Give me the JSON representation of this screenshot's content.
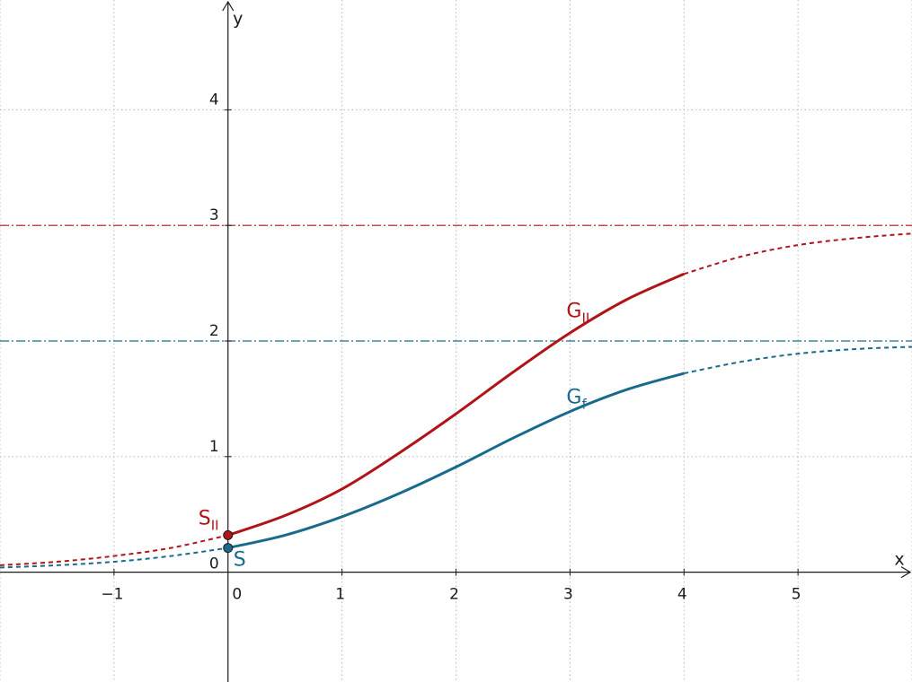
{
  "chart_data": {
    "type": "line",
    "xlabel": "x",
    "ylabel": "y",
    "xlim": [
      -2,
      6
    ],
    "ylim": [
      -0.95,
      4.95
    ],
    "grid": true,
    "origin_label": "0",
    "x_ticks": [
      {
        "value": -1,
        "label": "−1"
      },
      {
        "value": 0,
        "label": "0"
      },
      {
        "value": 1,
        "label": "1"
      },
      {
        "value": 2,
        "label": "2"
      },
      {
        "value": 3,
        "label": "3"
      },
      {
        "value": 4,
        "label": "4"
      },
      {
        "value": 5,
        "label": "5"
      }
    ],
    "y_ticks": [
      {
        "value": 1,
        "label": "1"
      },
      {
        "value": 2,
        "label": "2"
      },
      {
        "value": 3,
        "label": "3"
      },
      {
        "value": 4,
        "label": "4"
      }
    ],
    "asymptotes": [
      {
        "y": 3,
        "color": "#b01418"
      },
      {
        "y": 2,
        "color": "#1a6a8e"
      }
    ],
    "series": [
      {
        "name": "G",
        "subscript": "II",
        "color": "#b01418",
        "solid_range": [
          0,
          4
        ],
        "x": [
          -2,
          -1.5,
          -1,
          -0.5,
          0,
          0.5,
          1,
          1.5,
          2,
          2.5,
          3,
          3.5,
          4,
          4.5,
          5,
          5.5,
          6
        ],
        "y": [
          0.06,
          0.09,
          0.14,
          0.21,
          0.32,
          0.49,
          0.72,
          1.03,
          1.37,
          1.73,
          2.07,
          2.36,
          2.58,
          2.73,
          2.83,
          2.89,
          2.93
        ]
      },
      {
        "name": "G",
        "subscript": "f",
        "color": "#1a6a8e",
        "solid_range": [
          0,
          4
        ],
        "x": [
          -2,
          -1.5,
          -1,
          -0.5,
          0,
          0.5,
          1,
          1.5,
          2,
          2.5,
          3,
          3.5,
          4,
          4.5,
          5,
          5.5,
          6
        ],
        "y": [
          0.04,
          0.06,
          0.09,
          0.14,
          0.21,
          0.32,
          0.48,
          0.68,
          0.91,
          1.16,
          1.39,
          1.58,
          1.72,
          1.82,
          1.89,
          1.93,
          1.95
        ]
      }
    ],
    "points": [
      {
        "name": "S",
        "subscript": "II",
        "x": 0,
        "y": 0.32,
        "color": "#b01418"
      },
      {
        "name": "S",
        "subscript": "",
        "x": 0,
        "y": 0.21,
        "color": "#1a6a8e"
      }
    ]
  }
}
